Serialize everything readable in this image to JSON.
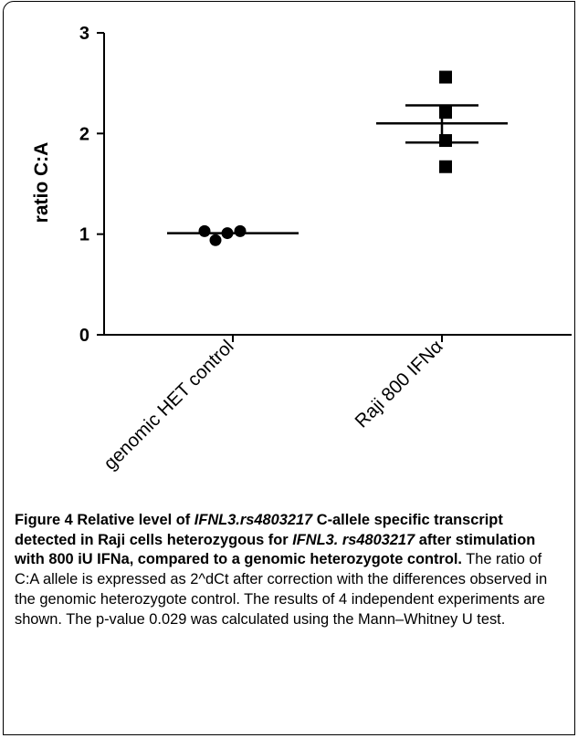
{
  "chart_data": {
    "type": "scatter",
    "categories": [
      "genomic HET control",
      "Raji 800 IFNα"
    ],
    "ylabel": "ratio C:A",
    "ylim": [
      0,
      3
    ],
    "yticks": [
      "0",
      "1",
      "2",
      "3"
    ],
    "grid": false,
    "series": [
      {
        "category": "genomic HET control",
        "marker": "circle",
        "values": [
          1.03,
          0.94,
          1.01,
          1.03
        ],
        "mean": 1.01,
        "error_upper": 1.01,
        "error_lower": 1.01
      },
      {
        "category": "Raji 800 IFNα",
        "marker": "square",
        "values": [
          2.56,
          2.21,
          1.93,
          1.67
        ],
        "mean": 2.1,
        "error_upper": 2.28,
        "error_lower": 1.91
      }
    ],
    "colors": {
      "markers": "#000000",
      "axes": "#000000"
    }
  },
  "caption": {
    "label": "Figure 4",
    "bold_parts": [
      " Relative level of ",
      "IFNL3.rs4803217",
      " C-allele specific transcript detected in Raji cells heterozygous for ",
      "IFNL3. rs4803217",
      " after stimulation with 800 iU IFNa, compared to a genomic heterozygote control."
    ],
    "body": " The ratio of C:A allele is expressed as 2^dCt after correction with the differences observed in the genomic heterozygote control. The results of 4 independent experiments are shown. The p-value 0.029 was calculated using the Mann–Whitney U test."
  }
}
